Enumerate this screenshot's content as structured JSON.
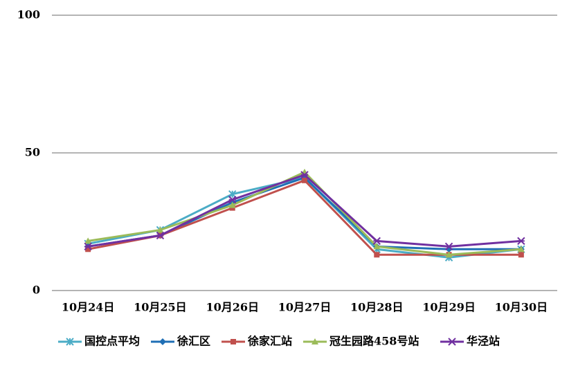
{
  "chart_data": {
    "type": "line",
    "categories": [
      "10月24日",
      "10月25日",
      "10月26日",
      "10月27日",
      "10月28日",
      "10月29日",
      "10月30日"
    ],
    "series": [
      {
        "name": "国控点平均",
        "color": "#4bacc6",
        "marker": "star",
        "values": [
          17,
          22,
          35,
          41,
          15,
          12,
          15
        ]
      },
      {
        "name": "徐汇区",
        "color": "#1f6fb5",
        "marker": "diamond",
        "values": [
          16,
          20,
          32,
          41,
          16,
          15,
          15
        ]
      },
      {
        "name": "徐家汇站",
        "color": "#c0504d",
        "marker": "square",
        "values": [
          15,
          20,
          30,
          40,
          13,
          13,
          13
        ]
      },
      {
        "name": "冠生园路458号站",
        "color": "#9bbb59",
        "marker": "triangle",
        "values": [
          18,
          22,
          31,
          43,
          16,
          13,
          15
        ]
      },
      {
        "name": "华泾站",
        "color": "#7030a0",
        "marker": "xstar",
        "values": [
          16,
          20,
          33,
          42,
          18,
          16,
          18
        ]
      }
    ],
    "ylim": [
      0,
      100
    ],
    "yticks": [
      0,
      50,
      100
    ],
    "grid": true,
    "legend": "bottom"
  }
}
